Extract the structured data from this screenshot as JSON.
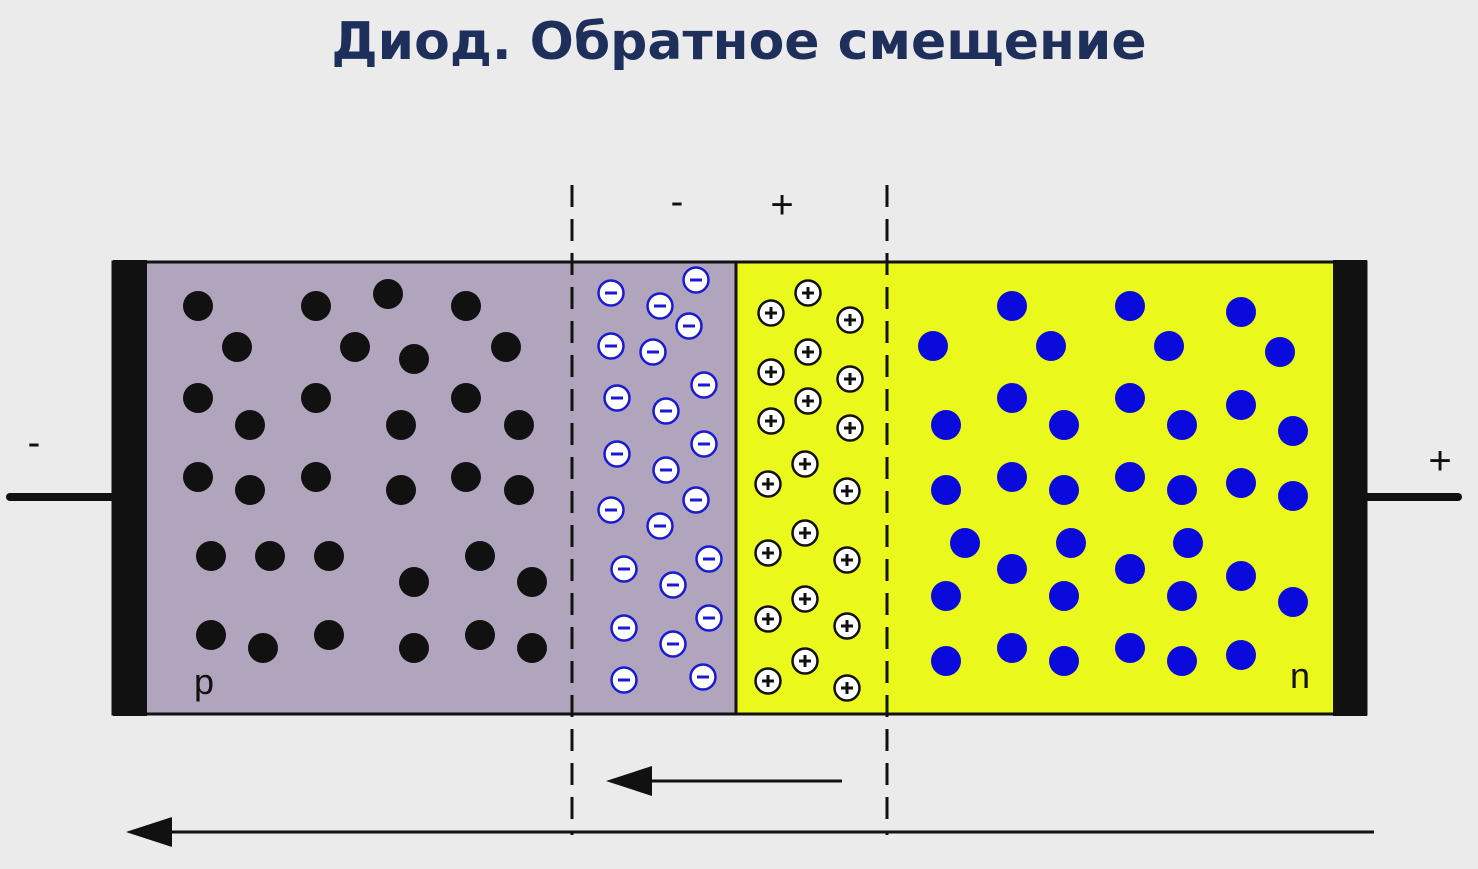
{
  "title": "Диод. Обратное смещение",
  "labels": {
    "depletion_minus": "-",
    "depletion_plus": "+",
    "terminal_left": "-",
    "terminal_right": "+",
    "region_p": "p",
    "region_n": "n"
  },
  "colors": {
    "p_region": "#b1a5be",
    "n_region": "#eaf81c",
    "holes": "#111111",
    "electrons": "#0a0adc",
    "negative_ions": "#1a1ad0",
    "positive_ions": "#111111",
    "title": "#1e2f5c"
  }
}
